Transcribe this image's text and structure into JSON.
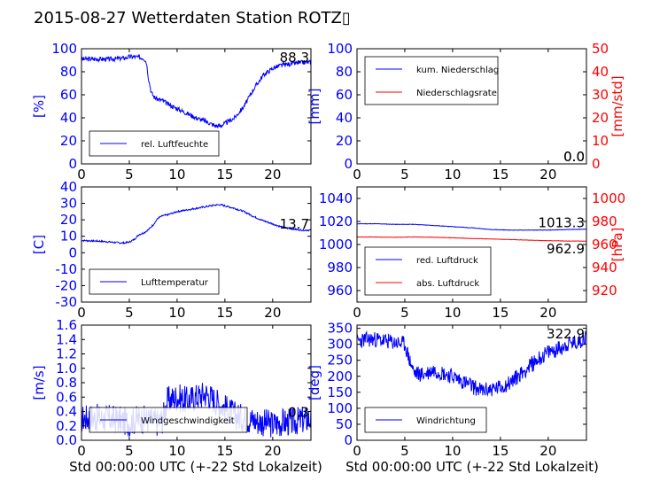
{
  "title": "2015-08-27 Wetterdaten Station ROTZ▯",
  "xlabel": "Std 00:00:00 UTC (+-22 Std Lokalzeit)",
  "colors": {
    "primary": "#0000ff",
    "secondary": "#ff0000",
    "text": "#000000"
  },
  "chart_data": [
    {
      "type": "line",
      "id": "humidity",
      "xlim": [
        0,
        24
      ],
      "ylim": [
        0,
        100
      ],
      "xticks": [
        0,
        5,
        10,
        15,
        20
      ],
      "yticks": [
        0,
        20,
        40,
        60,
        80,
        100
      ],
      "ylabel": "[%]",
      "legend_position": "bottom-left",
      "series": [
        {
          "name": "rel. Luftfeuchte",
          "color": "#0000ff",
          "x": [
            0,
            1,
            2,
            3,
            4,
            4.5,
            5,
            5.5,
            6,
            6.5,
            6.8,
            7,
            7.3,
            7.6,
            8,
            8.5,
            9,
            10,
            11,
            12,
            13,
            13.5,
            14,
            14.5,
            15,
            16,
            17,
            18,
            19,
            20,
            21,
            22,
            23,
            24
          ],
          "y": [
            91,
            91,
            91,
            91,
            91.5,
            92,
            93,
            93,
            92.5,
            92,
            88,
            75,
            62,
            58,
            56,
            55,
            52,
            48,
            44,
            40,
            37,
            35,
            33,
            33,
            35,
            40,
            50,
            65,
            77,
            83,
            86,
            87,
            88,
            88.3
          ],
          "noise": 2.0,
          "seed": 3
        }
      ],
      "last_value": "88.3"
    },
    {
      "type": "line",
      "id": "precipitation",
      "xlim": [
        0,
        24
      ],
      "ylim": [
        0,
        100
      ],
      "y2lim": [
        0,
        50
      ],
      "xticks": [
        0,
        5,
        10,
        15,
        20
      ],
      "yticks": [
        0,
        20,
        40,
        60,
        80,
        100
      ],
      "y2ticks": [
        0,
        10,
        20,
        30,
        40,
        50
      ],
      "ylabel": "[mm]",
      "y2label": "[mm/std]",
      "legend_position": "top-left",
      "series": [
        {
          "name": "kum. Niederschlag",
          "color": "#0000ff",
          "x": [
            0,
            24
          ],
          "y": [
            0,
            0
          ],
          "noise": 0,
          "seed": 0
        },
        {
          "name": "Niederschlagsrate",
          "color": "#ff0000",
          "x": [
            0,
            24
          ],
          "y": [
            0,
            0
          ],
          "noise": 0,
          "seed": 0
        }
      ],
      "last_value": "0.0",
      "last_value_2": "0.0"
    },
    {
      "type": "line",
      "id": "temperature",
      "xlim": [
        0,
        24
      ],
      "ylim": [
        -30,
        40
      ],
      "xticks": [
        0,
        5,
        10,
        15,
        20
      ],
      "yticks": [
        -30,
        -20,
        -10,
        0,
        10,
        20,
        30,
        40
      ],
      "ylabel": "[C]",
      "legend_position": "bottom-left",
      "series": [
        {
          "name": "Lufttemperatur",
          "color": "#0000ff",
          "x": [
            0,
            1,
            2,
            3,
            4,
            4.5,
            5,
            5.5,
            6,
            6.5,
            7,
            7.5,
            8,
            8.5,
            9,
            10,
            11,
            12,
            13,
            14,
            14.5,
            15,
            16,
            17,
            18,
            19,
            20,
            21,
            22,
            23,
            24
          ],
          "y": [
            7.5,
            7.2,
            7,
            6.5,
            6,
            6,
            6.5,
            8,
            11,
            12,
            14,
            17,
            21,
            22.5,
            23,
            25,
            26,
            27,
            28,
            29,
            29.2,
            28.5,
            27,
            25,
            22,
            19.5,
            17.5,
            15.5,
            14.5,
            13.8,
            13.7
          ],
          "noise": 0.5,
          "seed": 7
        }
      ],
      "last_value": "13.7"
    },
    {
      "type": "line",
      "id": "pressure",
      "xlim": [
        0,
        24
      ],
      "ylim": [
        950,
        1050
      ],
      "y2lim": [
        910,
        1010
      ],
      "xticks": [
        0,
        5,
        10,
        15,
        20
      ],
      "yticks": [
        960,
        980,
        1000,
        1020,
        1040
      ],
      "y2ticks": [
        920,
        940,
        960,
        980,
        1000
      ],
      "ylabel": "",
      "y2label": "[hPa]",
      "legend_position": "bottom-left",
      "series": [
        {
          "name": "red. Luftdruck",
          "color": "#0000ff",
          "x": [
            0,
            2,
            4,
            6,
            8,
            10,
            12,
            14,
            16,
            18,
            20,
            22,
            24
          ],
          "y": [
            1018,
            1018,
            1017.5,
            1017.5,
            1016.5,
            1015.5,
            1014.5,
            1013,
            1012.5,
            1012.5,
            1012.5,
            1013,
            1013.3
          ],
          "noise": 0.2,
          "seed": 11
        },
        {
          "name": "abs. Luftdruck",
          "color": "#ff0000",
          "axis": "right",
          "x": [
            0,
            2,
            4,
            6,
            8,
            10,
            12,
            14,
            16,
            18,
            20,
            22,
            24
          ],
          "y": [
            966.5,
            966.5,
            966.2,
            966.6,
            966.3,
            965.8,
            965.2,
            964.8,
            964.3,
            963.8,
            963.3,
            963,
            962.9
          ],
          "noise": 0.15,
          "seed": 13
        }
      ],
      "last_value": "1013.3",
      "last_value_2": "962.9"
    },
    {
      "type": "line",
      "id": "wind-speed",
      "xlim": [
        0,
        24
      ],
      "ylim": [
        0,
        1.6
      ],
      "xticks": [
        0,
        5,
        10,
        15,
        20
      ],
      "yticks": [
        0.0,
        0.2,
        0.4,
        0.6,
        0.8,
        1.0,
        1.2,
        1.4,
        1.6
      ],
      "ylabel": "[m/s]",
      "legend_position": "bottom-left",
      "series": [
        {
          "name": "Windgeschwindigkeit",
          "color": "#0000ff",
          "x": [
            0,
            1,
            2,
            3,
            4,
            5,
            6,
            7,
            8,
            8.5,
            9,
            10,
            11,
            12,
            13,
            14,
            15,
            16,
            17,
            18,
            19,
            20,
            21,
            22,
            23,
            24
          ],
          "y": [
            0.3,
            0.32,
            0.3,
            0.3,
            0.28,
            0.25,
            0.3,
            0.28,
            0.25,
            0.3,
            0.55,
            0.6,
            0.55,
            0.6,
            0.65,
            0.55,
            0.45,
            0.35,
            0.3,
            0.28,
            0.25,
            0.22,
            0.25,
            0.25,
            0.28,
            0.3
          ],
          "noise": 0.2,
          "seed": 17
        }
      ],
      "last_value": "0.3"
    },
    {
      "type": "line",
      "id": "wind-direction",
      "xlim": [
        0,
        24
      ],
      "ylim": [
        0,
        360
      ],
      "xticks": [
        0,
        5,
        10,
        15,
        20
      ],
      "yticks": [
        0,
        50,
        100,
        150,
        200,
        250,
        300,
        350
      ],
      "ylabel": "[deg]",
      "legend_position": "bottom-left",
      "series": [
        {
          "name": "Windrichtung",
          "color": "#0000ff",
          "x": [
            0,
            1,
            2,
            3,
            4,
            5,
            5.5,
            6,
            7,
            8,
            9,
            10,
            11,
            12,
            13,
            14,
            15,
            16,
            17,
            18,
            19,
            20,
            21,
            22,
            23,
            24
          ],
          "y": [
            310,
            315,
            315,
            310,
            305,
            300,
            250,
            210,
            205,
            220,
            210,
            200,
            185,
            170,
            155,
            160,
            165,
            180,
            205,
            230,
            255,
            275,
            285,
            300,
            305,
            322.9
          ],
          "noise": 25,
          "seed": 23
        }
      ],
      "last_value": "322.9"
    }
  ]
}
